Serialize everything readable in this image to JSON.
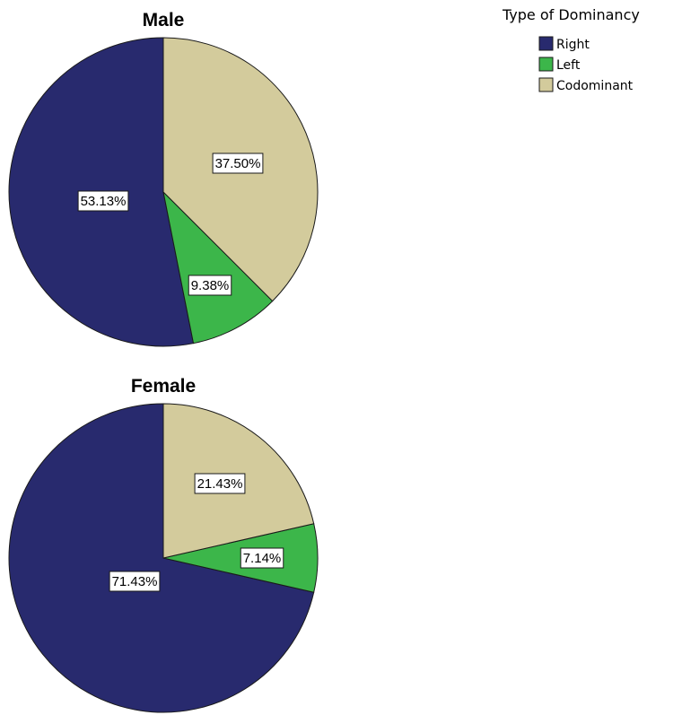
{
  "legend": {
    "title": "Type of  Dominancy",
    "placement": "top-right"
  },
  "chart_data": [
    {
      "type": "pie",
      "title": "Male",
      "slices": [
        {
          "label": "Right",
          "value": 53.13,
          "display": "53.13%",
          "color": "#282A6E"
        },
        {
          "label": "Left",
          "value": 9.38,
          "display": "9.38%",
          "color": "#3CB64A"
        },
        {
          "label": "Codominant",
          "value": 37.5,
          "display": "37.50%",
          "color": "#D3CB9C"
        }
      ]
    },
    {
      "type": "pie",
      "title": "Female",
      "slices": [
        {
          "label": "Right",
          "value": 71.43,
          "display": "71.43%",
          "color": "#282A6E"
        },
        {
          "label": "Left",
          "value": 7.14,
          "display": "7.14%",
          "color": "#3CB64A"
        },
        {
          "label": "Codominant",
          "value": 21.43,
          "display": "21.43%",
          "color": "#D3CB9C"
        }
      ]
    }
  ]
}
